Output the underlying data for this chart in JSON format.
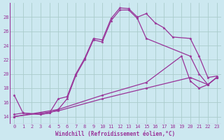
{
  "xlabel": "Windchill (Refroidissement éolien,°C)",
  "bg_color": "#cce8f0",
  "grid_color": "#aacccc",
  "line_color": "#993399",
  "xlim": [
    -0.5,
    23.5
  ],
  "ylim": [
    13.0,
    30.0
  ],
  "xticks": [
    0,
    1,
    2,
    3,
    4,
    5,
    6,
    7,
    8,
    9,
    10,
    11,
    12,
    13,
    14,
    15,
    16,
    17,
    18,
    19,
    20,
    21,
    22,
    23
  ],
  "yticks": [
    14,
    16,
    18,
    20,
    22,
    24,
    26,
    28
  ],
  "curve1_x": [
    0,
    1,
    3,
    4,
    5,
    6,
    7,
    8,
    9,
    10,
    11,
    12,
    13,
    14,
    15,
    16,
    17,
    18,
    20,
    21,
    22,
    23
  ],
  "curve1_y": [
    17.0,
    14.5,
    14.3,
    14.5,
    16.5,
    16.8,
    20.0,
    22.2,
    25.0,
    24.8,
    27.8,
    29.3,
    29.2,
    28.0,
    28.5,
    27.2,
    26.5,
    25.2,
    25.0,
    22.5,
    19.5,
    19.7
  ],
  "curve2_x": [
    0,
    1,
    3,
    4,
    5,
    6,
    7,
    8,
    9,
    10,
    11,
    12,
    13,
    14,
    15,
    20,
    21,
    22,
    23
  ],
  "curve2_y": [
    14.3,
    14.5,
    14.3,
    14.5,
    15.0,
    16.5,
    19.8,
    22.0,
    24.8,
    24.5,
    27.5,
    29.0,
    29.0,
    27.8,
    25.0,
    22.5,
    20.0,
    18.5,
    19.5
  ],
  "curve3_x": [
    0,
    5,
    10,
    15,
    19,
    20,
    21,
    22,
    23
  ],
  "curve3_y": [
    14.0,
    15.0,
    17.0,
    18.8,
    22.5,
    19.0,
    18.0,
    18.5,
    19.5
  ],
  "curve4_x": [
    0,
    5,
    10,
    15,
    20,
    22,
    23
  ],
  "curve4_y": [
    14.0,
    14.8,
    16.5,
    18.0,
    19.5,
    18.5,
    19.5
  ]
}
